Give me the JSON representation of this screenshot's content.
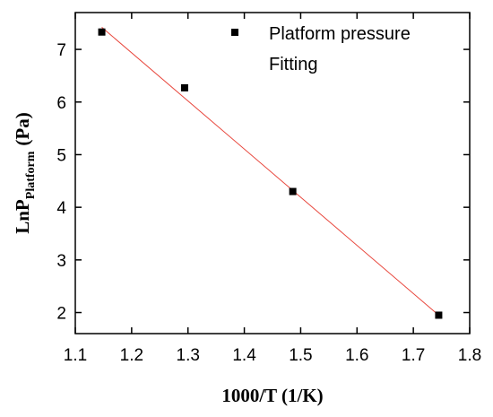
{
  "chart_data": {
    "type": "scatter",
    "xlabel": "1000/T (1/K)",
    "ylabel": {
      "main": "LnP",
      "subscript": "Platform",
      "unit": "(Pa)"
    },
    "xlim": [
      1.1,
      1.8
    ],
    "ylim": [
      1.6,
      7.7
    ],
    "x_ticks": [
      "1.1",
      "1.2",
      "1.3",
      "1.4",
      "1.5",
      "1.6",
      "1.7",
      "1.8"
    ],
    "y_ticks": [
      "2",
      "3",
      "4",
      "5",
      "6",
      "7"
    ],
    "grid": false,
    "legend_position": "top-right",
    "series": [
      {
        "name": "Platform pressure",
        "kind": "scatter",
        "marker": "square",
        "color": "#000000",
        "x": [
          1.147,
          1.294,
          1.486,
          1.745
        ],
        "y": [
          7.33,
          6.27,
          4.3,
          1.95
        ]
      },
      {
        "name": "Fitting",
        "kind": "line",
        "color": "#e8463c",
        "x": [
          1.147,
          1.745
        ],
        "y": [
          7.42,
          1.95
        ]
      }
    ]
  }
}
